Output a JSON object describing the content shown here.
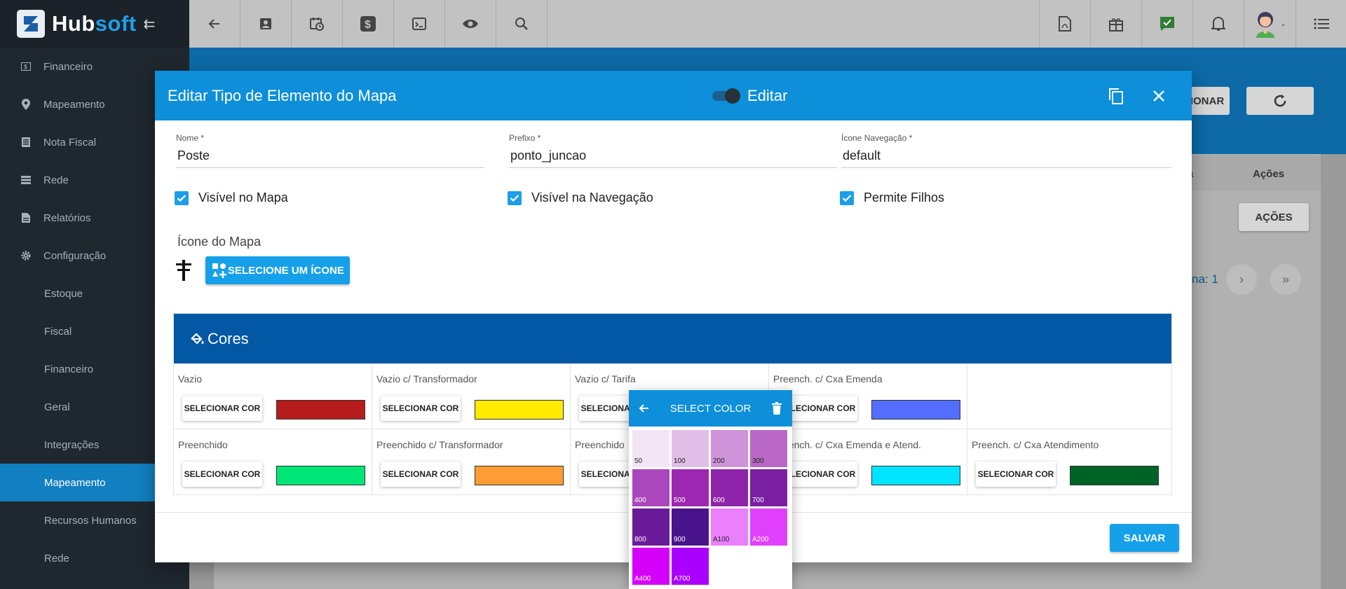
{
  "app": {
    "logo_left": "Hub",
    "logo_right": "soft"
  },
  "sidebar": {
    "items": [
      {
        "label": "Financeiro",
        "icon": "money-icon"
      },
      {
        "label": "Mapeamento",
        "icon": "map-pin-icon"
      },
      {
        "label": "Nota Fiscal",
        "icon": "document-icon"
      },
      {
        "label": "Rede",
        "icon": "network-icon"
      },
      {
        "label": "Relatórios",
        "icon": "report-icon"
      },
      {
        "label": "Configuração",
        "icon": "gear-icon"
      },
      {
        "label": "Estoque"
      },
      {
        "label": "Fiscal"
      },
      {
        "label": "Financeiro"
      },
      {
        "label": "Geral"
      },
      {
        "label": "Integrações"
      },
      {
        "label": "Mapeamento",
        "active": true
      },
      {
        "label": "Recursos Humanos"
      },
      {
        "label": "Rede"
      }
    ]
  },
  "background": {
    "header_button_partial": "IONAR",
    "column_partial": "a",
    "column_actions": "Ações",
    "actions_button": "AÇÕES",
    "page_label_partial": "na: 1"
  },
  "modal": {
    "title": "Editar Tipo de Elemento do Mapa",
    "toggle_label": "Editar",
    "fields": {
      "nome": {
        "label": "Nome *",
        "value": "Poste"
      },
      "prefixo": {
        "label": "Prefixo *",
        "value": "ponto_juncao"
      },
      "icone_nav": {
        "label": "Ícone Navegação *",
        "value": "default"
      }
    },
    "checks": {
      "visivel_mapa": "Visível no Mapa",
      "visivel_nav": "Visível na Navegação",
      "permite_filhos": "Permite Filhos"
    },
    "icon_section_label": "Ícone do Mapa",
    "select_icon_button": "SELECIONE UM ÍCONE",
    "colors_title": "Cores",
    "select_color_button": "SELECIONAR COR",
    "color_cells": [
      {
        "label": "Vazio",
        "color": "#b71c1c"
      },
      {
        "label": "Vazio c/ Transformador",
        "color": "#ffeb00"
      },
      {
        "label": "Vazio c/ Tarifa",
        "color": ""
      },
      {
        "label": "Preench. c/ Cxa Emenda",
        "color": "#536dfe"
      },
      {
        "label": "",
        "color": ""
      },
      {
        "label": "Preenchido",
        "color": "#00e676"
      },
      {
        "label": "Preenchido c/ Transformador",
        "color": "#ff9c33"
      },
      {
        "label": "Preenchido",
        "color": ""
      },
      {
        "label": "Preench. c/ Cxa Emenda e Atend.",
        "color": "#00e5ff"
      },
      {
        "label": "Preench. c/ Cxa Atendimento",
        "color": "#006428"
      }
    ],
    "save_button": "SALVAR"
  },
  "color_picker": {
    "title": "SELECT COLOR",
    "shades": [
      {
        "name": "50",
        "color": "#f3e5f5",
        "text": "#222"
      },
      {
        "name": "100",
        "color": "#e1bee7",
        "text": "#222"
      },
      {
        "name": "200",
        "color": "#ce93d8",
        "text": "#222"
      },
      {
        "name": "300",
        "color": "#ba68c8",
        "text": "#222"
      },
      {
        "name": "400",
        "color": "#ab47bc",
        "text": "#fff"
      },
      {
        "name": "500",
        "color": "#9c27b0",
        "text": "#fff"
      },
      {
        "name": "600",
        "color": "#8e24aa",
        "text": "#fff"
      },
      {
        "name": "700",
        "color": "#7b1fa2",
        "text": "#fff"
      },
      {
        "name": "800",
        "color": "#6a1b9a",
        "text": "#fff"
      },
      {
        "name": "900",
        "color": "#4a148c",
        "text": "#fff"
      },
      {
        "name": "A100",
        "color": "#ea80fc",
        "text": "#222"
      },
      {
        "name": "A200",
        "color": "#e040fb",
        "text": "#fff"
      },
      {
        "name": "A400",
        "color": "#d500f9",
        "text": "#fff"
      },
      {
        "name": "A700",
        "color": "#aa00ff",
        "text": "#fff"
      }
    ]
  }
}
